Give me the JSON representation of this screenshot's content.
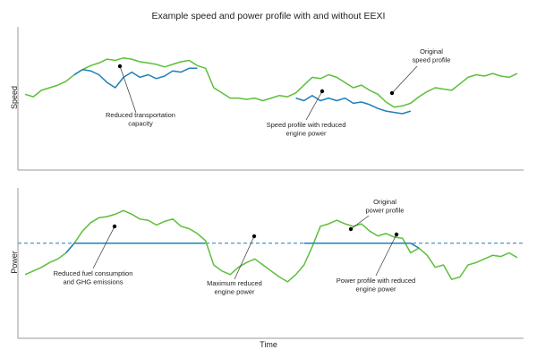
{
  "title": "Example speed and power profile with and without EEXI",
  "xlabel": "Time",
  "colors": {
    "green": "#5cbf3a",
    "blue": "#1f7fb8",
    "axis": "#9a9a9a",
    "dot": "#000000"
  },
  "chart_data": [
    {
      "type": "line",
      "ylabel": "Speed",
      "x": [
        0,
        1,
        2,
        3,
        4,
        5,
        6,
        7,
        8,
        9,
        10,
        11,
        12,
        13,
        14,
        15,
        16,
        17,
        18,
        19,
        20,
        21,
        22,
        23,
        24,
        25,
        26,
        27,
        28,
        29,
        30,
        31,
        32,
        33,
        34,
        35,
        36,
        37,
        38,
        39,
        40,
        41,
        42,
        43,
        44,
        45,
        46,
        47,
        48,
        49,
        50,
        51,
        52,
        53,
        54,
        55,
        56,
        57,
        58,
        59,
        60
      ],
      "series": [
        {
          "name": "Original speed profile",
          "color": "green",
          "values": [
            0.55,
            0.53,
            0.58,
            0.6,
            0.62,
            0.65,
            0.7,
            0.74,
            0.77,
            0.79,
            0.82,
            0.81,
            0.83,
            0.82,
            0.8,
            0.79,
            0.78,
            0.76,
            0.78,
            0.8,
            0.81,
            0.77,
            0.75,
            0.6,
            0.56,
            0.52,
            0.52,
            0.51,
            0.52,
            0.5,
            0.52,
            0.54,
            0.53,
            0.56,
            0.62,
            0.68,
            0.67,
            0.7,
            0.68,
            0.64,
            0.6,
            0.62,
            0.58,
            0.55,
            0.49,
            0.45,
            0.46,
            0.48,
            0.53,
            0.57,
            0.6,
            0.59,
            0.58,
            0.63,
            0.68,
            0.7,
            0.69,
            0.71,
            0.69,
            0.68,
            0.71
          ]
        },
        {
          "name": "Speed profile with reduced engine power",
          "color": "blue",
          "values": [
            null,
            null,
            null,
            null,
            null,
            null,
            0.7,
            0.74,
            0.73,
            0.7,
            0.64,
            0.6,
            0.68,
            0.72,
            0.68,
            0.7,
            0.67,
            0.69,
            0.73,
            0.72,
            0.75,
            0.75,
            null,
            null,
            null,
            null,
            null,
            null,
            null,
            null,
            null,
            null,
            null,
            0.52,
            0.5,
            0.54,
            0.5,
            0.52,
            0.5,
            0.52,
            0.48,
            0.49,
            0.47,
            0.44,
            0.42,
            0.41,
            0.4,
            0.42,
            null,
            null,
            null,
            null,
            null,
            null,
            null,
            null,
            null,
            null,
            null,
            null,
            null
          ]
        }
      ],
      "annotations": [
        {
          "text": [
            "Reduced transportation",
            "capacity"
          ]
        },
        {
          "text": [
            "Speed profile with reduced",
            "engine power"
          ]
        },
        {
          "text": [
            "Original",
            "speed profile"
          ]
        }
      ]
    },
    {
      "type": "line",
      "ylabel": "Power",
      "x": [
        0,
        1,
        2,
        3,
        4,
        5,
        6,
        7,
        8,
        9,
        10,
        11,
        12,
        13,
        14,
        15,
        16,
        17,
        18,
        19,
        20,
        21,
        22,
        23,
        24,
        25,
        26,
        27,
        28,
        29,
        30,
        31,
        32,
        33,
        34,
        35,
        36,
        37,
        38,
        39,
        40,
        41,
        42,
        43,
        44,
        45,
        46,
        47,
        48,
        49,
        50,
        51,
        52,
        53,
        54,
        55,
        56,
        57,
        58,
        59,
        60
      ],
      "max_power_level": 0.58,
      "series": [
        {
          "name": "Original power profile",
          "color": "green",
          "values": [
            0.32,
            0.35,
            0.38,
            0.42,
            0.45,
            0.5,
            0.58,
            0.68,
            0.75,
            0.79,
            0.8,
            0.82,
            0.85,
            0.82,
            0.78,
            0.77,
            0.73,
            0.76,
            0.78,
            0.72,
            0.7,
            0.66,
            0.6,
            0.4,
            0.35,
            0.32,
            0.38,
            0.42,
            0.45,
            0.4,
            0.35,
            0.3,
            0.26,
            0.32,
            0.4,
            0.55,
            0.72,
            0.74,
            0.77,
            0.74,
            0.72,
            0.74,
            0.68,
            0.64,
            0.66,
            0.63,
            0.62,
            0.5,
            0.54,
            0.48,
            0.38,
            0.4,
            0.28,
            0.3,
            0.4,
            0.42,
            0.45,
            0.48,
            0.47,
            0.5,
            0.46
          ]
        },
        {
          "name": "Power profile with reduced engine power",
          "color": "blue",
          "values": [
            null,
            null,
            null,
            null,
            null,
            0.5,
            0.58,
            0.58,
            0.58,
            0.58,
            0.58,
            0.58,
            0.58,
            0.58,
            0.58,
            0.58,
            0.58,
            0.58,
            0.58,
            0.58,
            0.58,
            0.58,
            0.58,
            null,
            null,
            null,
            null,
            null,
            null,
            null,
            null,
            null,
            null,
            null,
            0.58,
            0.58,
            0.58,
            0.58,
            0.58,
            0.58,
            0.58,
            0.58,
            0.58,
            0.58,
            0.58,
            0.58,
            0.58,
            0.58,
            0.54,
            null,
            null,
            null,
            null,
            null,
            null,
            null,
            null,
            null,
            null,
            null,
            null
          ]
        }
      ],
      "annotations": [
        {
          "text": [
            "Reduced fuel consumption",
            "and GHG emissions"
          ]
        },
        {
          "text": [
            "Maximum reduced",
            "engine power"
          ]
        },
        {
          "text": [
            "Original",
            "power profile"
          ]
        },
        {
          "text": [
            "Power profile with reduced",
            "engine power"
          ]
        }
      ]
    }
  ]
}
